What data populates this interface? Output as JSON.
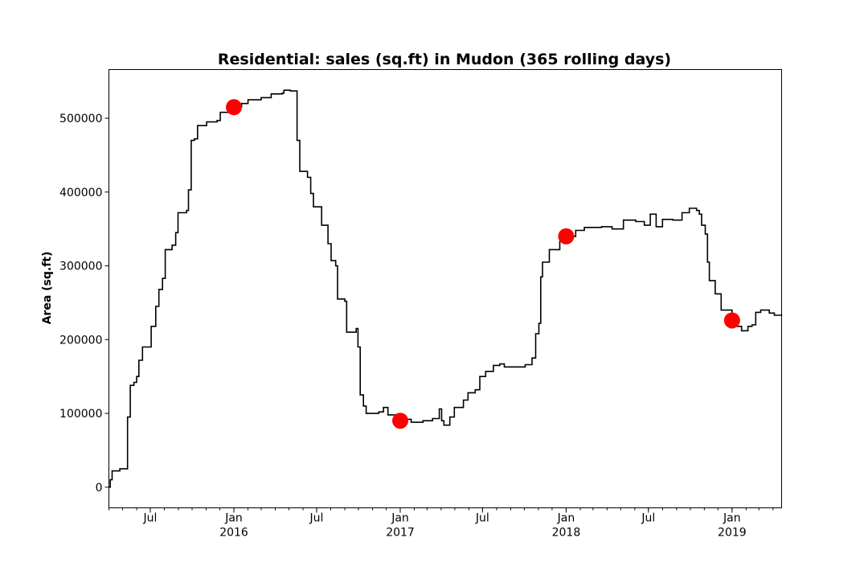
{
  "chart_data": {
    "type": "line",
    "title": "Residential: sales (sq.ft) in Mudon (365 rolling days)",
    "xlabel": "",
    "ylabel": "Area (sq.ft)",
    "ylim": [
      -28000,
      566000
    ],
    "xlim": [
      "2015-04-01",
      "2019-04-20"
    ],
    "grid": false,
    "legend": "none",
    "y_ticks": [
      0,
      100000,
      200000,
      300000,
      400000,
      500000
    ],
    "x_ticks": [
      {
        "date": "2015-07-01",
        "label": "Jul",
        "year": ""
      },
      {
        "date": "2016-01-01",
        "label": "Jan",
        "year": "2016"
      },
      {
        "date": "2016-07-01",
        "label": "Jul",
        "year": ""
      },
      {
        "date": "2017-01-01",
        "label": "Jan",
        "year": "2017"
      },
      {
        "date": "2017-07-01",
        "label": "Jul",
        "year": ""
      },
      {
        "date": "2018-01-01",
        "label": "Jan",
        "year": "2018"
      },
      {
        "date": "2018-07-01",
        "label": "Jul",
        "year": ""
      },
      {
        "date": "2019-01-01",
        "label": "Jan",
        "year": "2019"
      }
    ],
    "series": [
      {
        "name": "",
        "color": "#000000",
        "points": [
          [
            "2015-04-01",
            0
          ],
          [
            "2015-04-04",
            10000
          ],
          [
            "2015-04-08",
            22000
          ],
          [
            "2015-04-25",
            25000
          ],
          [
            "2015-05-10",
            25000
          ],
          [
            "2015-05-12",
            95000
          ],
          [
            "2015-05-18",
            138000
          ],
          [
            "2015-05-26",
            142000
          ],
          [
            "2015-06-01",
            150000
          ],
          [
            "2015-06-06",
            172000
          ],
          [
            "2015-06-14",
            190000
          ],
          [
            "2015-06-26",
            190000
          ],
          [
            "2015-07-03",
            218000
          ],
          [
            "2015-07-13",
            245000
          ],
          [
            "2015-07-20",
            268000
          ],
          [
            "2015-07-28",
            283000
          ],
          [
            "2015-08-03",
            322000
          ],
          [
            "2015-08-18",
            328000
          ],
          [
            "2015-08-26",
            345000
          ],
          [
            "2015-08-31",
            372000
          ],
          [
            "2015-09-19",
            375000
          ],
          [
            "2015-09-23",
            403000
          ],
          [
            "2015-09-29",
            470000
          ],
          [
            "2015-10-06",
            472000
          ],
          [
            "2015-10-13",
            490000
          ],
          [
            "2015-11-02",
            495000
          ],
          [
            "2015-11-25",
            497000
          ],
          [
            "2015-12-02",
            508000
          ],
          [
            "2016-01-01",
            515000
          ],
          [
            "2016-01-18",
            520000
          ],
          [
            "2016-02-01",
            525000
          ],
          [
            "2016-03-01",
            528000
          ],
          [
            "2016-03-23",
            533000
          ],
          [
            "2016-04-16",
            534000
          ],
          [
            "2016-04-20",
            538000
          ],
          [
            "2016-05-04",
            537000
          ],
          [
            "2016-05-14",
            537000
          ],
          [
            "2016-05-19",
            470000
          ],
          [
            "2016-05-25",
            428000
          ],
          [
            "2016-06-11",
            420000
          ],
          [
            "2016-06-18",
            398000
          ],
          [
            "2016-06-24",
            380000
          ],
          [
            "2016-07-12",
            355000
          ],
          [
            "2016-07-26",
            330000
          ],
          [
            "2016-08-02",
            307000
          ],
          [
            "2016-08-12",
            300000
          ],
          [
            "2016-08-16",
            255000
          ],
          [
            "2016-09-01",
            252000
          ],
          [
            "2016-09-05",
            210000
          ],
          [
            "2016-09-26",
            215000
          ],
          [
            "2016-09-30",
            190000
          ],
          [
            "2016-10-05",
            125000
          ],
          [
            "2016-10-12",
            110000
          ],
          [
            "2016-10-18",
            100000
          ],
          [
            "2016-11-15",
            102000
          ],
          [
            "2016-11-25",
            108000
          ],
          [
            "2016-12-05",
            98000
          ],
          [
            "2017-01-01",
            90000
          ],
          [
            "2017-01-10",
            92000
          ],
          [
            "2017-01-25",
            88000
          ],
          [
            "2017-02-20",
            90000
          ],
          [
            "2017-03-13",
            93000
          ],
          [
            "2017-03-28",
            106000
          ],
          [
            "2017-04-02",
            90000
          ],
          [
            "2017-04-07",
            84000
          ],
          [
            "2017-04-20",
            95000
          ],
          [
            "2017-04-30",
            108000
          ],
          [
            "2017-05-20",
            118000
          ],
          [
            "2017-05-30",
            128000
          ],
          [
            "2017-06-15",
            132000
          ],
          [
            "2017-06-25",
            150000
          ],
          [
            "2017-07-08",
            157000
          ],
          [
            "2017-07-25",
            165000
          ],
          [
            "2017-08-08",
            167000
          ],
          [
            "2017-08-18",
            163000
          ],
          [
            "2017-09-15",
            163000
          ],
          [
            "2017-10-03",
            166000
          ],
          [
            "2017-10-18",
            175000
          ],
          [
            "2017-10-26",
            208000
          ],
          [
            "2017-11-02",
            222000
          ],
          [
            "2017-11-06",
            285000
          ],
          [
            "2017-11-10",
            305000
          ],
          [
            "2017-11-25",
            322000
          ],
          [
            "2017-12-18",
            333000
          ],
          [
            "2018-01-01",
            340000
          ],
          [
            "2018-01-22",
            348000
          ],
          [
            "2018-02-10",
            352000
          ],
          [
            "2018-03-20",
            353000
          ],
          [
            "2018-04-12",
            350000
          ],
          [
            "2018-05-07",
            362000
          ],
          [
            "2018-06-03",
            360000
          ],
          [
            "2018-06-22",
            355000
          ],
          [
            "2018-07-05",
            370000
          ],
          [
            "2018-07-18",
            353000
          ],
          [
            "2018-08-01",
            363000
          ],
          [
            "2018-08-24",
            362000
          ],
          [
            "2018-09-13",
            372000
          ],
          [
            "2018-09-29",
            378000
          ],
          [
            "2018-10-15",
            375000
          ],
          [
            "2018-10-21",
            370000
          ],
          [
            "2018-10-26",
            355000
          ],
          [
            "2018-11-03",
            343000
          ],
          [
            "2018-11-08",
            305000
          ],
          [
            "2018-11-12",
            280000
          ],
          [
            "2018-11-25",
            262000
          ],
          [
            "2018-12-08",
            240000
          ],
          [
            "2019-01-01",
            226000
          ],
          [
            "2019-01-12",
            218000
          ],
          [
            "2019-01-22",
            212000
          ],
          [
            "2019-02-05",
            218000
          ],
          [
            "2019-02-14",
            220000
          ],
          [
            "2019-02-22",
            237000
          ],
          [
            "2019-03-05",
            240000
          ],
          [
            "2019-03-24",
            236000
          ],
          [
            "2019-04-04",
            233000
          ],
          [
            "2019-04-20",
            232000
          ]
        ]
      }
    ],
    "markers": [
      {
        "date": "2016-01-01",
        "value": 515000,
        "color": "#ff0000"
      },
      {
        "date": "2017-01-01",
        "value": 90000,
        "color": "#ff0000"
      },
      {
        "date": "2018-01-01",
        "value": 340000,
        "color": "#ff0000"
      },
      {
        "date": "2019-01-01",
        "value": 226000,
        "color": "#ff0000"
      }
    ]
  }
}
